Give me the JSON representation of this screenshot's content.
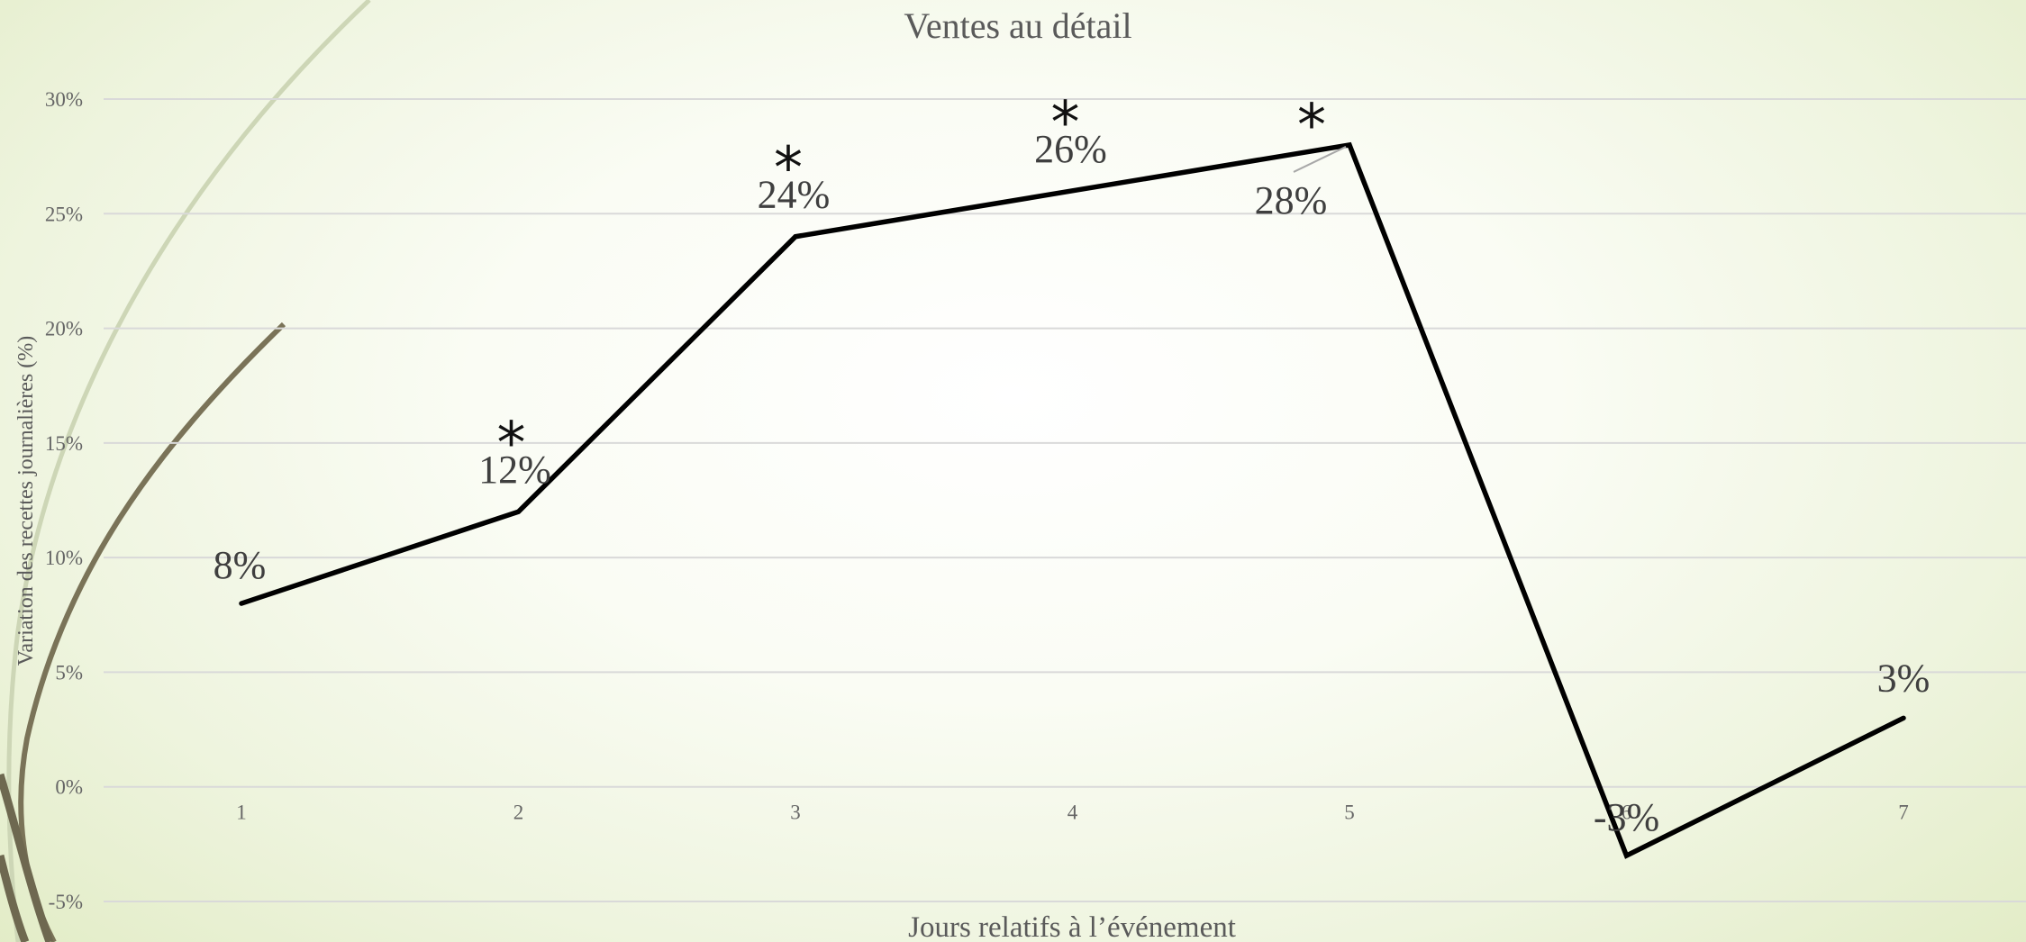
{
  "chart_data": {
    "type": "line",
    "title": "Ventes au détail",
    "xlabel": "Jours relatifs à l’événement",
    "ylabel": "Variation des recettes journalières (%)",
    "categories": [
      "1",
      "2",
      "3",
      "4",
      "5",
      "6",
      "7"
    ],
    "series": [
      {
        "values": [
          8,
          12,
          24,
          26,
          28,
          -3,
          3
        ],
        "data_labels": [
          "8%",
          "12%",
          "24%",
          "26%",
          "28%",
          "-3%",
          "3%"
        ],
        "color": "#000000"
      }
    ],
    "significance_marks": [
      "",
      "*",
      "*",
      "*",
      "*",
      "",
      ""
    ],
    "ylim": [
      -5,
      30
    ],
    "yticks": [
      "-5%",
      "0%",
      "5%",
      "10%",
      "15%",
      "20%",
      "25%",
      "30%"
    ],
    "grid": true,
    "legend": "none"
  }
}
